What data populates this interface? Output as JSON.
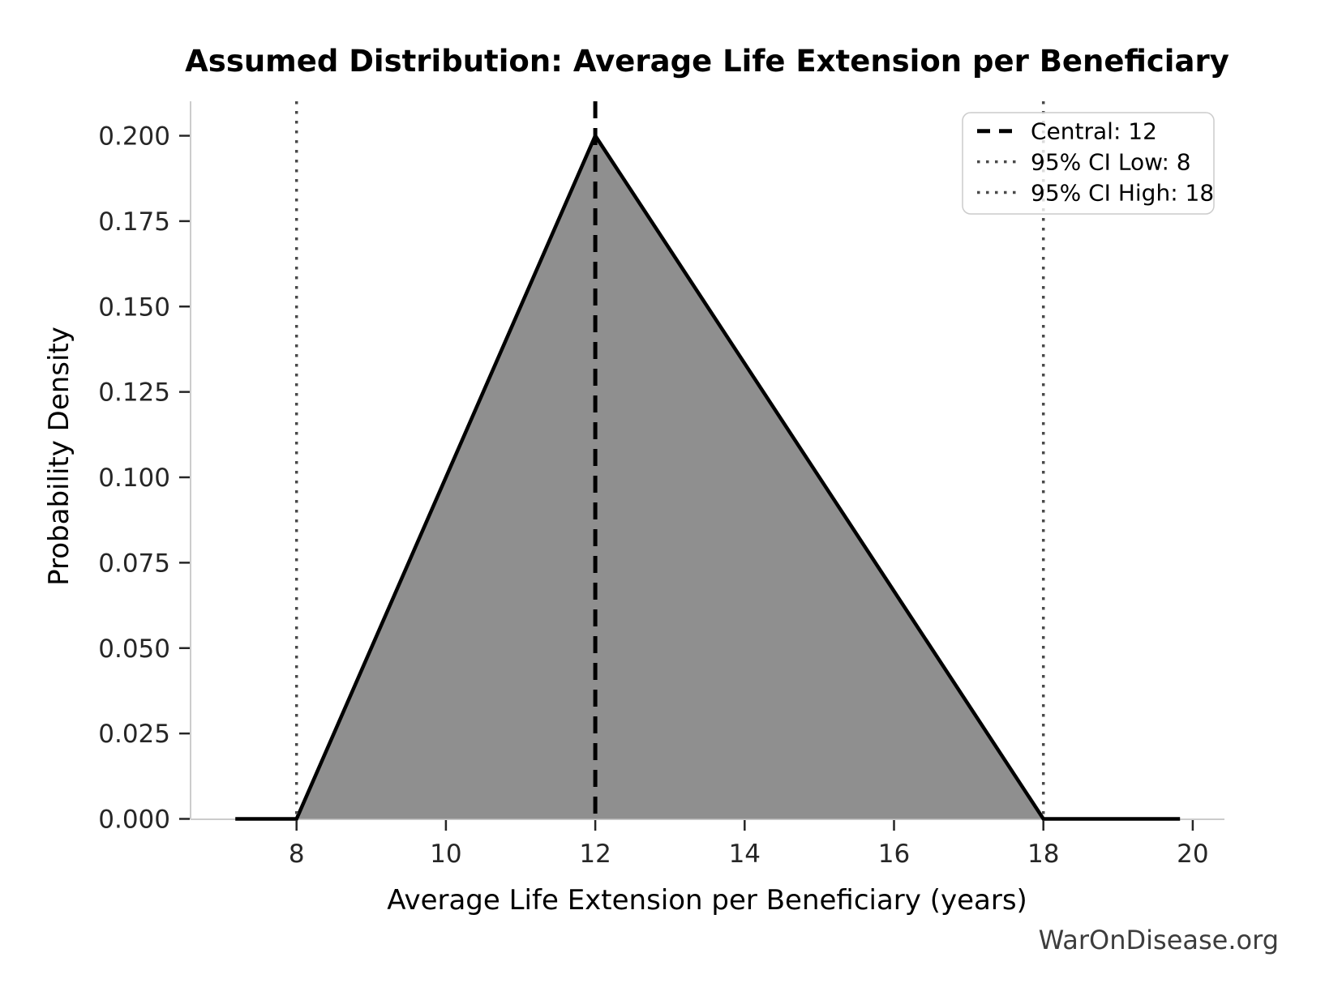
{
  "figure": {
    "watermark": "WarOnDisease.org",
    "background_color": "#ffffff"
  },
  "chart_data": {
    "type": "area",
    "subtype": "triangular-distribution-pdf",
    "title": "Assumed Distribution: Average Life Extension per Beneficiary",
    "xlabel": "Average Life Extension per Beneficiary (years)",
    "ylabel": "Probability Density",
    "x_ticks": [
      8,
      10,
      12,
      14,
      16,
      18,
      20
    ],
    "y_ticks": [
      0,
      0.025,
      0.05,
      0.075,
      0.1,
      0.125,
      0.15,
      0.175,
      0.2
    ],
    "y_tick_labels": [
      "0.000",
      "0.025",
      "0.050",
      "0.075",
      "0.100",
      "0.125",
      "0.150",
      "0.175",
      "0.200"
    ],
    "xlim": [
      6.58,
      20.42
    ],
    "ylim": [
      0,
      0.2101
    ],
    "grid": false,
    "distribution": {
      "low": 8,
      "mode": 12,
      "high": 18,
      "peak_density": 0.2
    },
    "pdf_line": {
      "x": [
        7.18,
        8,
        12,
        18,
        19.83
      ],
      "y": [
        0,
        0,
        0.2,
        0,
        0
      ]
    },
    "fill_region": {
      "x": [
        8,
        12,
        18
      ],
      "y": [
        0,
        0.2,
        0
      ]
    },
    "vlines": [
      {
        "label": "Central: 12",
        "x": 12,
        "style": "dashed",
        "color": "#000000",
        "width": 5
      },
      {
        "label": "95% CI Low: 8",
        "x": 8,
        "style": "dotted",
        "color": "#4a4a4a",
        "width": 3.5
      },
      {
        "label": "95% CI High: 18",
        "x": 18,
        "style": "dotted",
        "color": "#4a4a4a",
        "width": 3.5
      }
    ],
    "legend": {
      "position": "upper-right"
    },
    "colors": {
      "fill": "#8f8f8f",
      "pdf_line": "#000000",
      "spine": "#cccccc",
      "tick": "#262626",
      "watermark": "#3d3d3d",
      "legend_border": "#cccccc"
    }
  }
}
